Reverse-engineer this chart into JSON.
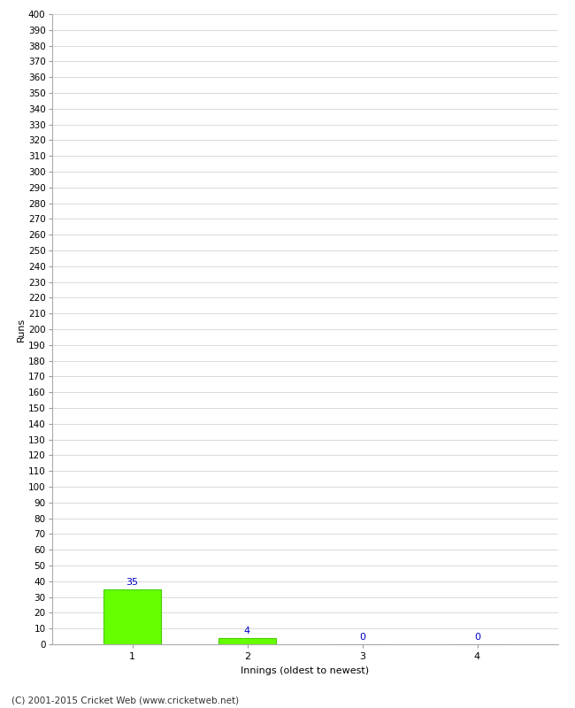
{
  "categories": [
    1,
    2,
    3,
    4
  ],
  "values": [
    35,
    4,
    0,
    0
  ],
  "bar_color": "#66ff00",
  "bar_edge_color": "#44cc00",
  "xlabel": "Innings (oldest to newest)",
  "ylabel": "Runs",
  "ylim": [
    0,
    400
  ],
  "ytick_step": 10,
  "label_color": "#0000cc",
  "background_color": "#ffffff",
  "grid_color": "#cccccc",
  "footer": "(C) 2001-2015 Cricket Web (www.cricketweb.net)"
}
